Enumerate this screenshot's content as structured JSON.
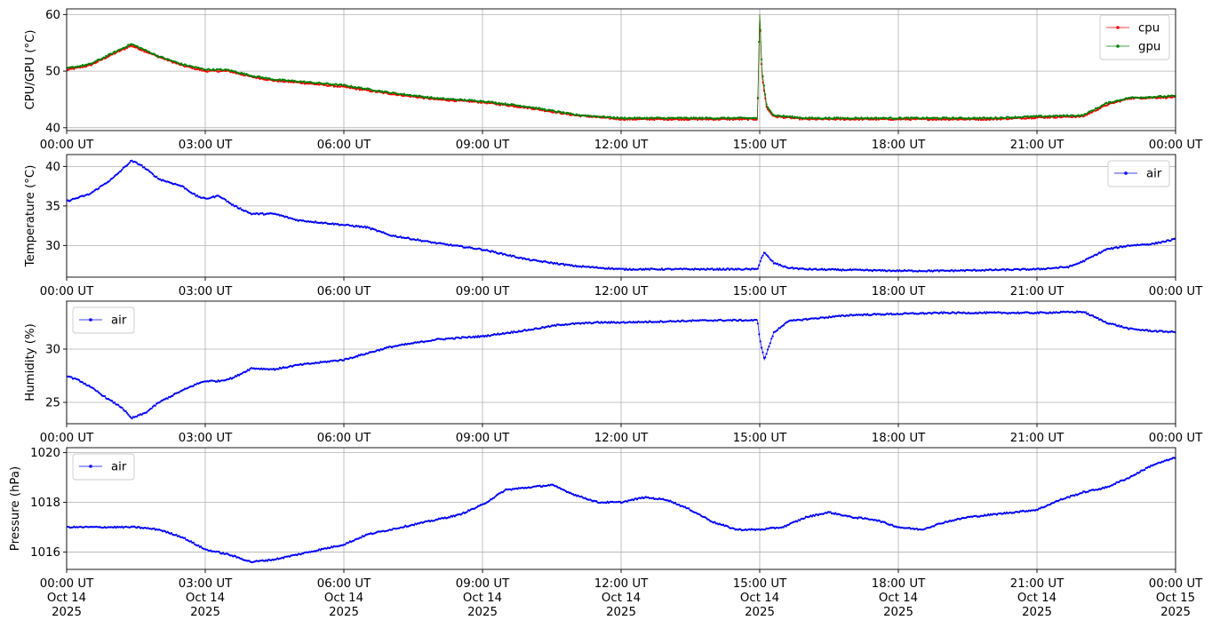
{
  "x_axis": {
    "ticks": [
      "00:00 UT",
      "03:00 UT",
      "06:00 UT",
      "09:00 UT",
      "12:00 UT",
      "15:00 UT",
      "18:00 UT",
      "21:00 UT",
      "00:00 UT"
    ],
    "bottom_dates": [
      "Oct 14",
      "Oct 14",
      "Oct 14",
      "Oct 14",
      "Oct 14",
      "Oct 14",
      "Oct 14",
      "Oct 14",
      "Oct 15"
    ],
    "bottom_years": [
      "2025",
      "2025",
      "2025",
      "2025",
      "2025",
      "2025",
      "2025",
      "2025",
      "2025"
    ]
  },
  "colors": {
    "cpu": "#ff0000",
    "gpu": "#008000",
    "air": "#0000ff",
    "grid": "#b0b0b0"
  },
  "chart_data": [
    {
      "type": "line",
      "ylabel": "CPU/GPU (°C)",
      "xlim": [
        "2025-10-14 00:00",
        "2025-10-15 00:00"
      ],
      "ylim": [
        39.5,
        61
      ],
      "yticks": [
        40,
        50,
        60
      ],
      "grid": true,
      "legend": "top-right",
      "series": [
        {
          "name": "cpu",
          "x_hours": [
            0,
            0.5,
            1.0,
            1.4,
            2.0,
            2.5,
            3.0,
            3.5,
            4.0,
            4.5,
            5.0,
            6.0,
            7.0,
            8.0,
            9.0,
            10.0,
            11.0,
            12.0,
            13.0,
            14.0,
            14.95,
            15.0,
            15.05,
            15.15,
            15.3,
            16.0,
            17.0,
            18.0,
            19.0,
            20.0,
            21.0,
            22.0,
            22.5,
            23.0,
            24.0
          ],
          "values": [
            50.2,
            51,
            53,
            54.5,
            52.5,
            51,
            50,
            50,
            49,
            48.3,
            48,
            47.2,
            46,
            45,
            44.5,
            43.5,
            42.2,
            41.5,
            41.5,
            41.5,
            41.5,
            60,
            49,
            43.5,
            42,
            41.5,
            41.5,
            41.5,
            41.5,
            41.5,
            41.8,
            42,
            44,
            45.2,
            45.4
          ]
        },
        {
          "name": "gpu",
          "x_hours": [
            0,
            0.5,
            1.0,
            1.4,
            2.0,
            2.5,
            3.0,
            3.5,
            4.0,
            4.5,
            5.0,
            6.0,
            7.0,
            8.0,
            9.0,
            10.0,
            11.0,
            12.0,
            13.0,
            14.0,
            14.95,
            15.0,
            15.05,
            15.15,
            15.3,
            16.0,
            17.0,
            18.0,
            19.0,
            20.0,
            21.0,
            22.0,
            22.5,
            23.0,
            24.0
          ],
          "values": [
            50.5,
            51.2,
            53.2,
            54.8,
            52.6,
            51.2,
            50.3,
            50.2,
            49.2,
            48.5,
            48.2,
            47.5,
            46.2,
            45.2,
            44.7,
            43.7,
            42.3,
            41.7,
            41.7,
            41.7,
            41.7,
            60,
            50,
            44,
            42.2,
            41.7,
            41.7,
            41.7,
            41.7,
            41.7,
            42,
            42.2,
            44.3,
            45.3,
            45.6
          ]
        }
      ]
    },
    {
      "type": "line",
      "ylabel": "Temperature (°C)",
      "xlim": [
        "2025-10-14 00:00",
        "2025-10-15 00:00"
      ],
      "ylim": [
        26,
        41.5
      ],
      "yticks": [
        30,
        35,
        40
      ],
      "grid": true,
      "legend": "top-right",
      "series": [
        {
          "name": "air",
          "x_hours": [
            0,
            0.5,
            1.0,
            1.4,
            1.6,
            2.0,
            2.5,
            2.8,
            3.0,
            3.3,
            3.6,
            4.0,
            4.5,
            5.0,
            6.0,
            6.5,
            7.0,
            8.0,
            9.0,
            10.0,
            11.0,
            12.0,
            13.0,
            14.0,
            14.95,
            15.05,
            15.1,
            15.3,
            15.6,
            16.0,
            17.0,
            18.0,
            19.0,
            20.0,
            21.0,
            21.7,
            22.0,
            22.5,
            23.0,
            23.5,
            24.0
          ],
          "values": [
            35.6,
            36.5,
            38.5,
            40.7,
            40.2,
            38.4,
            37.5,
            36.3,
            35.9,
            36.3,
            35.1,
            34,
            34,
            33.2,
            32.6,
            32.3,
            31.3,
            30.3,
            29.5,
            28.2,
            27.4,
            27,
            27,
            27,
            27,
            28.6,
            29.1,
            27.8,
            27.2,
            27,
            26.9,
            26.8,
            26.8,
            26.9,
            27,
            27.3,
            28,
            29.5,
            30,
            30.2,
            30.8
          ]
        }
      ]
    },
    {
      "type": "line",
      "ylabel": "Humidity (%)",
      "xlim": [
        "2025-10-14 00:00",
        "2025-10-15 00:00"
      ],
      "ylim": [
        23,
        34.5
      ],
      "yticks": [
        25,
        30
      ],
      "grid": true,
      "legend": "top-left",
      "series": [
        {
          "name": "air",
          "x_hours": [
            0,
            0.3,
            0.6,
            0.9,
            1.2,
            1.4,
            1.7,
            2.0,
            2.4,
            2.8,
            3.0,
            3.3,
            3.6,
            4.0,
            4.5,
            5.0,
            6.0,
            7.0,
            8.0,
            9.0,
            10.0,
            10.7,
            11.5,
            12.0,
            13.0,
            14.0,
            14.95,
            15.0,
            15.1,
            15.3,
            15.6,
            16.0,
            17.0,
            18.0,
            19.0,
            20.0,
            21.0,
            22.0,
            22.5,
            23.0,
            23.5,
            24.0
          ],
          "values": [
            27.5,
            27,
            26.2,
            25.3,
            24.5,
            23.5,
            24,
            25,
            25.9,
            26.7,
            27,
            27,
            27.3,
            28.2,
            28.1,
            28.5,
            29,
            30.2,
            30.9,
            31.2,
            31.8,
            32.3,
            32.5,
            32.5,
            32.6,
            32.7,
            32.7,
            31,
            29,
            31.5,
            32.6,
            32.8,
            33.2,
            33.3,
            33.4,
            33.4,
            33.4,
            33.5,
            32.5,
            31.9,
            31.7,
            31.6
          ]
        }
      ]
    },
    {
      "type": "line",
      "ylabel": "Pressure (hPa)",
      "xlim": [
        "2025-10-14 00:00",
        "2025-10-15 00:00"
      ],
      "ylim": [
        1015.3,
        1020.2
      ],
      "yticks": [
        1016,
        1018,
        1020
      ],
      "grid": true,
      "legend": "top-left",
      "series": [
        {
          "name": "air",
          "x_hours": [
            0,
            0.5,
            1.0,
            1.5,
            2.0,
            2.5,
            3.0,
            3.5,
            4.0,
            4.5,
            5.0,
            5.5,
            6.0,
            6.5,
            7.0,
            7.5,
            8.0,
            8.5,
            9.0,
            9.5,
            10.0,
            10.5,
            11.0,
            11.5,
            12.0,
            12.5,
            13.0,
            13.5,
            14.0,
            14.5,
            15.0,
            15.5,
            16.0,
            16.5,
            17.0,
            17.5,
            18.0,
            18.5,
            19.0,
            19.5,
            20.0,
            20.5,
            21.0,
            21.5,
            22.0,
            22.5,
            23.0,
            23.5,
            24.0
          ],
          "values": [
            1017,
            1017,
            1017,
            1017,
            1016.9,
            1016.6,
            1016.1,
            1015.9,
            1015.6,
            1015.7,
            1015.9,
            1016.1,
            1016.3,
            1016.7,
            1016.9,
            1017.1,
            1017.3,
            1017.5,
            1017.9,
            1018.5,
            1018.6,
            1018.7,
            1018.3,
            1018,
            1018,
            1018.2,
            1018.1,
            1017.7,
            1017.2,
            1016.9,
            1016.9,
            1017,
            1017.4,
            1017.6,
            1017.4,
            1017.3,
            1017,
            1016.9,
            1017.2,
            1017.4,
            1017.5,
            1017.6,
            1017.7,
            1018.1,
            1018.4,
            1018.6,
            1019,
            1019.5,
            1019.8
          ]
        }
      ]
    }
  ]
}
